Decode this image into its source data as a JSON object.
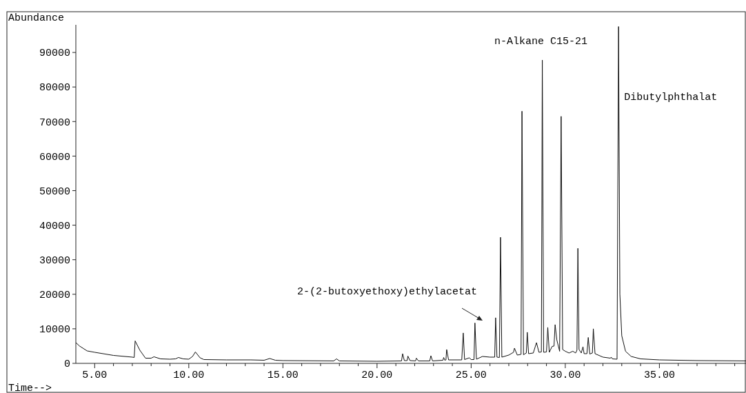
{
  "chart_data": {
    "type": "line",
    "xlabel": "Time-->",
    "ylabel": "Abundance",
    "xlim": [
      4,
      39.6
    ],
    "ylim": [
      0,
      98000
    ],
    "xticks": [
      {
        "value": 5,
        "label": "5.00"
      },
      {
        "value": 6,
        "label": null
      },
      {
        "value": 7,
        "label": null
      },
      {
        "value": 8,
        "label": null
      },
      {
        "value": 9,
        "label": null
      },
      {
        "value": 10,
        "label": "10.00"
      },
      {
        "value": 11,
        "label": null
      },
      {
        "value": 12,
        "label": null
      },
      {
        "value": 13,
        "label": null
      },
      {
        "value": 14,
        "label": null
      },
      {
        "value": 15,
        "label": "15.00"
      },
      {
        "value": 16,
        "label": null
      },
      {
        "value": 17,
        "label": null
      },
      {
        "value": 18,
        "label": null
      },
      {
        "value": 19,
        "label": null
      },
      {
        "value": 20,
        "label": "20.00"
      },
      {
        "value": 21,
        "label": null
      },
      {
        "value": 22,
        "label": null
      },
      {
        "value": 23,
        "label": null
      },
      {
        "value": 24,
        "label": null
      },
      {
        "value": 25,
        "label": "25.00"
      },
      {
        "value": 26,
        "label": null
      },
      {
        "value": 27,
        "label": null
      },
      {
        "value": 28,
        "label": null
      },
      {
        "value": 29,
        "label": null
      },
      {
        "value": 30,
        "label": "30.00"
      },
      {
        "value": 31,
        "label": null
      },
      {
        "value": 32,
        "label": null
      },
      {
        "value": 33,
        "label": null
      },
      {
        "value": 34,
        "label": null
      },
      {
        "value": 35,
        "label": "35.00"
      },
      {
        "value": 36,
        "label": null
      },
      {
        "value": 37,
        "label": null
      },
      {
        "value": 38,
        "label": null
      },
      {
        "value": 39,
        "label": null
      }
    ],
    "yticks": [
      0,
      10000,
      20000,
      30000,
      40000,
      50000,
      60000,
      70000,
      80000,
      90000
    ],
    "grid": false,
    "marker": "none",
    "line_style": "solid",
    "annotations": [
      "n-Alkane C15-21",
      "Dibutylphthalat",
      "2-(2-butoxyethoxy)ethylacetat"
    ],
    "series": [
      {
        "color": "#111111",
        "x": [
          4.0,
          4.2,
          4.6,
          5.0,
          6.0,
          7.0,
          7.1,
          7.15,
          7.4,
          7.7,
          8.0,
          8.15,
          8.5,
          9.0,
          9.3,
          9.45,
          9.7,
          10.0,
          10.2,
          10.35,
          10.6,
          10.8,
          12.0,
          13.3,
          14.0,
          14.3,
          14.6,
          15.0,
          17.7,
          17.85,
          18.0,
          20.0,
          21.3,
          21.36,
          21.45,
          21.6,
          21.64,
          21.75,
          22.05,
          22.09,
          22.2,
          22.8,
          22.86,
          22.95,
          23.5,
          23.54,
          23.6,
          23.66,
          23.7,
          23.8,
          24.5,
          24.58,
          24.65,
          24.9,
          25.0,
          25.15,
          25.2,
          25.28,
          25.6,
          26.0,
          26.25,
          26.3,
          26.37,
          26.5,
          26.56,
          26.63,
          27.0,
          27.25,
          27.3,
          27.45,
          27.65,
          27.7,
          27.78,
          27.93,
          27.98,
          28.05,
          28.3,
          28.47,
          28.6,
          28.73,
          28.78,
          28.85,
          29.0,
          29.07,
          29.15,
          29.3,
          29.4,
          29.46,
          29.55,
          29.7,
          29.78,
          29.86,
          30.0,
          30.2,
          30.4,
          30.55,
          30.62,
          30.67,
          30.73,
          30.85,
          30.94,
          31.0,
          31.15,
          31.22,
          31.3,
          31.44,
          31.49,
          31.58,
          32.0,
          32.4,
          32.44,
          32.5,
          32.75,
          32.83,
          32.9,
          33.0,
          33.2,
          33.5,
          34.0,
          35.0,
          37.0,
          39.6
        ],
        "values": [
          6000,
          5000,
          3600,
          3200,
          2300,
          1800,
          1700,
          6500,
          3800,
          1500,
          1500,
          1900,
          1300,
          1200,
          1300,
          1700,
          1300,
          1200,
          2000,
          3300,
          1600,
          1100,
          1000,
          1000,
          900,
          1400,
          900,
          800,
          700,
          1300,
          700,
          600,
          700,
          2800,
          800,
          800,
          2100,
          800,
          700,
          1500,
          700,
          700,
          2200,
          700,
          900,
          1700,
          900,
          1000,
          4000,
          1000,
          1000,
          8800,
          1100,
          1600,
          1100,
          1100,
          11700,
          1200,
          2000,
          1800,
          1800,
          13200,
          1800,
          1700,
          36500,
          1800,
          2400,
          3200,
          4400,
          2400,
          2600,
          73000,
          2500,
          3000,
          9000,
          2800,
          3000,
          6000,
          3200,
          3300,
          87800,
          3200,
          3300,
          10400,
          3200,
          4900,
          5000,
          11200,
          6800,
          3500,
          71500,
          4000,
          3500,
          3000,
          3500,
          3000,
          3800,
          33300,
          4000,
          3000,
          4800,
          2800,
          2800,
          7500,
          2700,
          3000,
          10000,
          2800,
          1800,
          1500,
          1800,
          1300,
          1200,
          97500,
          20000,
          8000,
          3500,
          2000,
          1300,
          1000,
          800,
          700
        ]
      }
    ]
  }
}
